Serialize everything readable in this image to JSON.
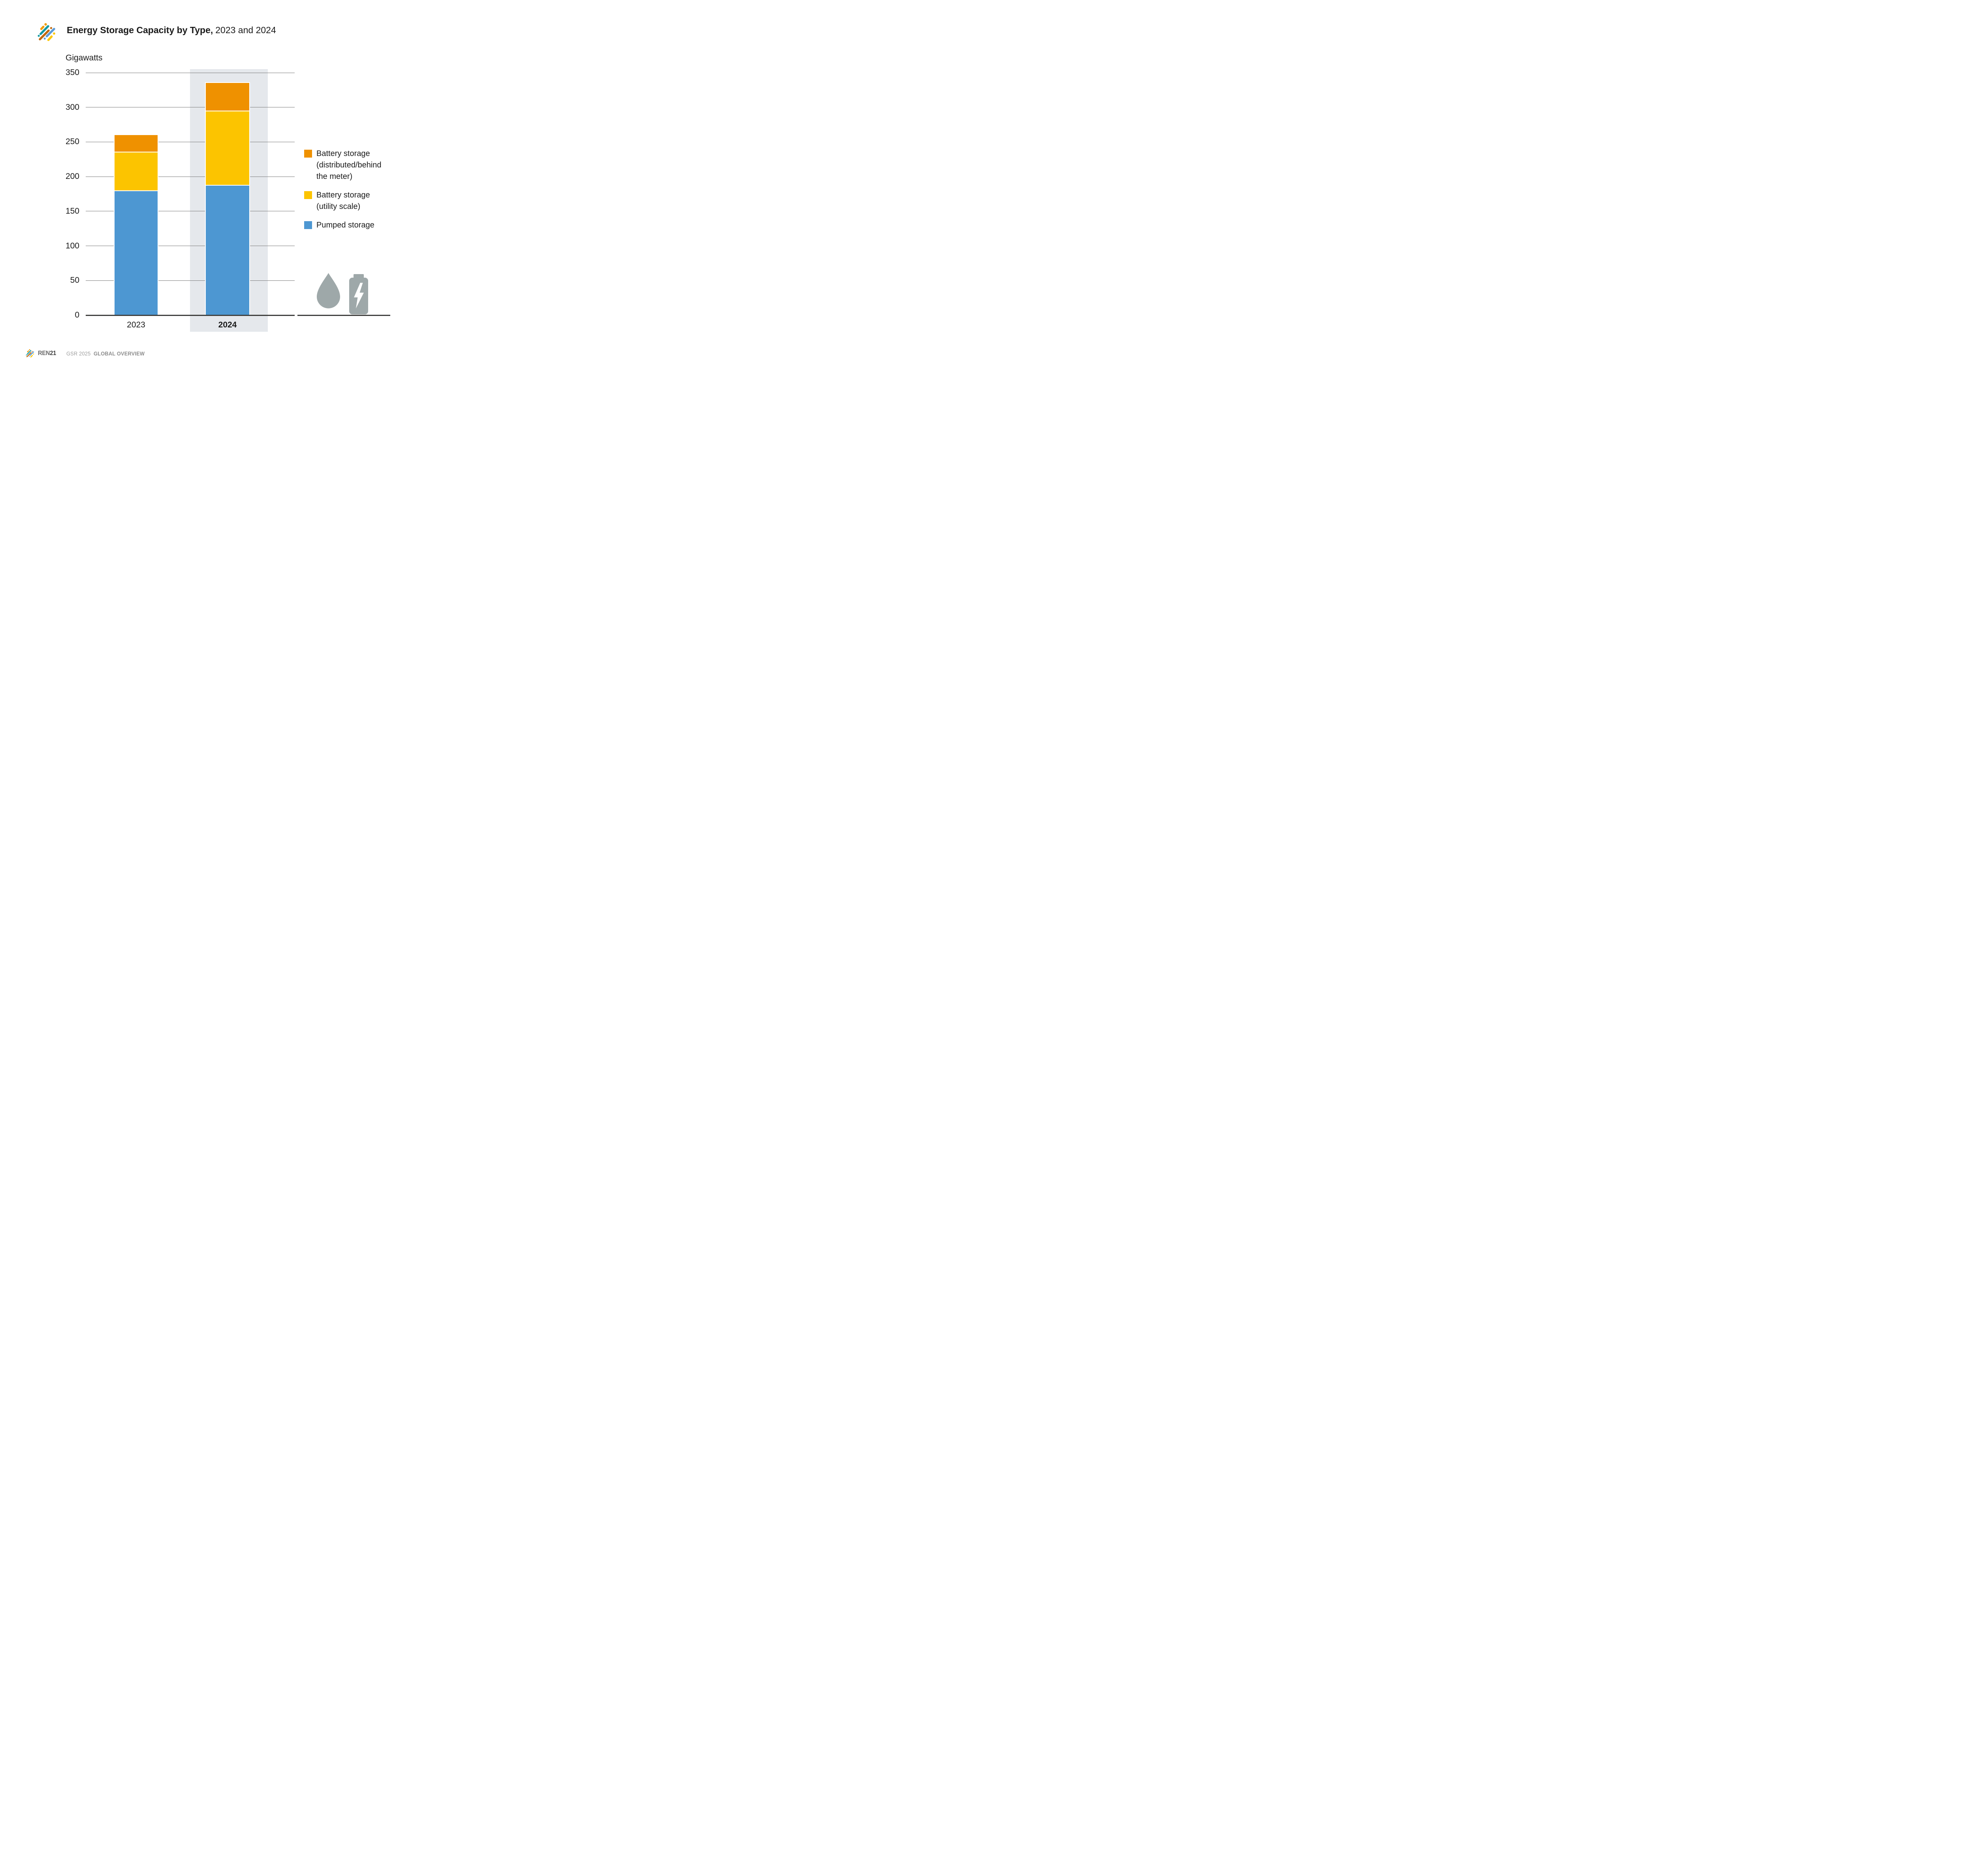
{
  "header": {
    "title_bold": "Energy Storage Capacity by Type,",
    "title_regular": "2023 and 2024"
  },
  "chart_data": {
    "type": "bar",
    "stacked": true,
    "title": "Energy Storage Capacity by Type, 2023 and 2024",
    "ylabel": "Gigawatts",
    "xlabel": "",
    "categories": [
      "2023",
      "2024"
    ],
    "series": [
      {
        "name": "Pumped storage",
        "color": "#4d97d2",
        "values": [
          180,
          188
        ]
      },
      {
        "name": "Battery storage (utility scale)",
        "color": "#fcc400",
        "values": [
          56,
          107
        ]
      },
      {
        "name": "Battery storage (distributed/behind the meter)",
        "color": "#ef9100",
        "values": [
          24,
          40
        ]
      }
    ],
    "totals": [
      260,
      335
    ],
    "ylim": [
      0,
      350
    ],
    "yticks": [
      "0",
      "50",
      "100",
      "150",
      "200",
      "250",
      "300",
      "350"
    ],
    "grid": true,
    "highlighted_category": "2024",
    "legend_position": "right",
    "gridline_color": "#7b7b7b",
    "axis_color": "#3e3e3d",
    "highlight_band_color": "#e5e8ec"
  },
  "legend": {
    "items": [
      {
        "swatch_color": "#ef9100",
        "lines": [
          "Battery storage",
          "(distributed/behind",
          "the meter)"
        ]
      },
      {
        "swatch_color": "#fcc400",
        "lines": [
          "Battery storage",
          "(utility scale)"
        ]
      },
      {
        "swatch_color": "#4d97d2",
        "lines": [
          "Pumped storage"
        ]
      }
    ]
  },
  "icons": {
    "water_drop": "water-drop-icon",
    "battery": "battery-lightning-icon",
    "color": "#9ea8a9"
  },
  "footer": {
    "brand_ren": "REN",
    "brand_21": "21",
    "report": "GSR 2025",
    "section": "GLOBAL OVERVIEW"
  }
}
